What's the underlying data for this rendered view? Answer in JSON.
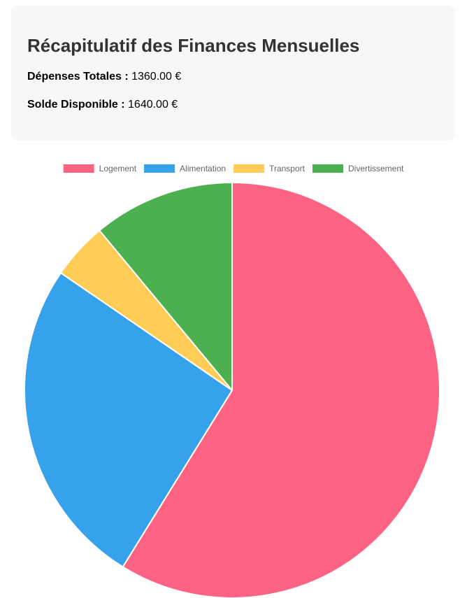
{
  "summary": {
    "title": "Récapitulatif des Finances Mensuelles",
    "total_label": "Dépenses Totales :",
    "total_value": "1360.00 €",
    "balance_label": "Solde Disponible :",
    "balance_value": "1640.00 €"
  },
  "chart_data": {
    "type": "pie",
    "categories": [
      "Logement",
      "Alimentation",
      "Transport",
      "Divertissement"
    ],
    "values": [
      800,
      350,
      60,
      150
    ],
    "colors": [
      "#ff6384",
      "#36a2eb",
      "#ffcd56",
      "#4caf50"
    ],
    "legend_position": "top"
  }
}
